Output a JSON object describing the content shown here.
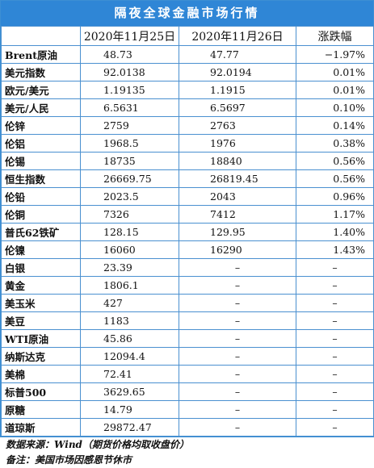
{
  "title": "隔夜全球金融市场行情",
  "header": {
    "name": "",
    "date1": "2020年11月25日",
    "date2": "2020年11月26日",
    "change": "涨跌幅"
  },
  "rows": [
    {
      "name": "Brent原油",
      "v1": "48.73",
      "v2": "47.77",
      "chg": "−1.97%"
    },
    {
      "name": "美元指数",
      "v1": "92.0138",
      "v2": "92.0194",
      "chg": "0.01%"
    },
    {
      "name": "欧元/美元",
      "v1": "1.19135",
      "v2": "1.1915",
      "chg": "0.01%"
    },
    {
      "name": "美元/人民",
      "v1": "6.5631",
      "v2": "6.5697",
      "chg": "0.10%"
    },
    {
      "name": "伦锌",
      "v1": "2759",
      "v2": "2763",
      "chg": "0.14%"
    },
    {
      "name": "伦铝",
      "v1": "1968.5",
      "v2": "1976",
      "chg": "0.38%"
    },
    {
      "name": "伦锡",
      "v1": "18735",
      "v2": "18840",
      "chg": "0.56%"
    },
    {
      "name": "恒生指数",
      "v1": "26669.75",
      "v2": "26819.45",
      "chg": "0.56%"
    },
    {
      "name": "伦铅",
      "v1": "2023.5",
      "v2": "2043",
      "chg": "0.96%"
    },
    {
      "name": "伦铜",
      "v1": "7326",
      "v2": "7412",
      "chg": "1.17%"
    },
    {
      "name": "普氏62铁矿",
      "v1": "128.15",
      "v2": "129.95",
      "chg": "1.40%"
    },
    {
      "name": "伦镍",
      "v1": "16060",
      "v2": "16290",
      "chg": "1.43%"
    },
    {
      "name": "白银",
      "v1": "23.39",
      "v2": "–",
      "chg": "–"
    },
    {
      "name": "黄金",
      "v1": "1806.1",
      "v2": "–",
      "chg": "–"
    },
    {
      "name": "美玉米",
      "v1": "427",
      "v2": "–",
      "chg": "–"
    },
    {
      "name": "美豆",
      "v1": "1183",
      "v2": "–",
      "chg": "–"
    },
    {
      "name": "WTI原油",
      "v1": "45.86",
      "v2": "–",
      "chg": "–"
    },
    {
      "name": "纳斯达克",
      "v1": "12094.4",
      "v2": "–",
      "chg": "–"
    },
    {
      "name": "美棉",
      "v1": "72.41",
      "v2": "–",
      "chg": "–"
    },
    {
      "name": "标普500",
      "v1": "3629.65",
      "v2": "–",
      "chg": "–"
    },
    {
      "name": "原糖",
      "v1": "14.79",
      "v2": "–",
      "chg": "–"
    },
    {
      "name": "道琼斯",
      "v1": "29872.47",
      "v2": "–",
      "chg": "–"
    }
  ],
  "footer": {
    "source": "数据来源：Wind（期货价格均取收盘价）",
    "note": "备注：美国市场因感恩节休市"
  },
  "colors": {
    "header_bg": "#2f86d6",
    "border": "#4a90d0"
  }
}
